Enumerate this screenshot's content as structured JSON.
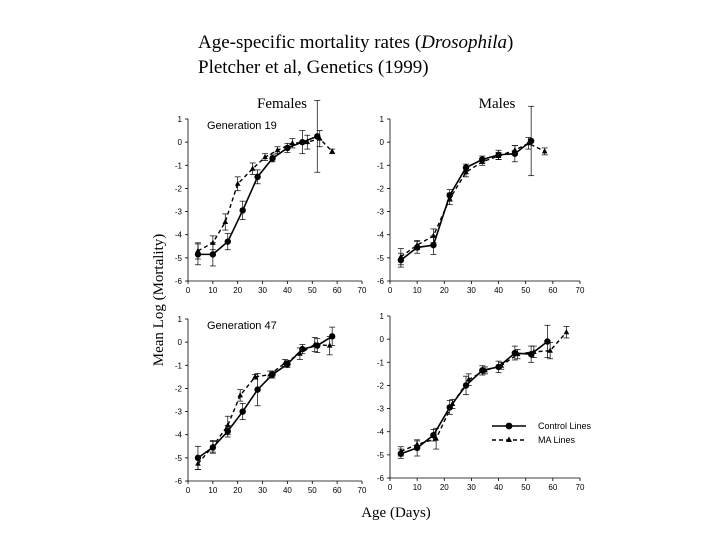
{
  "header": {
    "line1_prefix": "Age-specific mortality rates (",
    "line1_italic": "Drosophila",
    "line1_suffix": ")",
    "line2": "Pletcher et al, Genetics (1999)"
  },
  "chart_data": {
    "type": "line",
    "col_titles": [
      "Females",
      "Males"
    ],
    "xlabel": "Age (Days)",
    "ylabel": "Mean Log (Mortality)",
    "xticks": [
      "0",
      "10",
      "20",
      "30",
      "40",
      "50",
      "60",
      "70"
    ],
    "yticks": [
      "1",
      "0",
      "-1",
      "-2",
      "-3",
      "-4",
      "-5",
      "-6"
    ],
    "xlim": [
      0,
      70
    ],
    "ylim": [
      -6,
      1
    ],
    "legend": {
      "placement": "bottom-right panel, lower right",
      "entries": [
        {
          "name": "Control Lines",
          "style": "solid",
          "marker": "circle"
        },
        {
          "name": "MA Lines",
          "style": "dashed",
          "marker": "triangle"
        }
      ]
    },
    "panels": [
      {
        "gen_label": "Generation 19",
        "sex": "Females",
        "series": [
          {
            "name": "Control Lines",
            "x": [
              4,
              10,
              16,
              22,
              28,
              34,
              40,
              46,
              52
            ],
            "y": [
              -4.85,
              -4.85,
              -4.3,
              -2.95,
              -1.5,
              -0.7,
              -0.25,
              0.0,
              0.25
            ],
            "err": [
              0.45,
              0.5,
              0.35,
              0.4,
              0.3,
              0.15,
              0.2,
              0.5,
              1.55
            ]
          },
          {
            "name": "MA Lines",
            "x": [
              4,
              10,
              15,
              20,
              26,
              31,
              36,
              42,
              48,
              53,
              58
            ],
            "y": [
              -4.7,
              -4.35,
              -3.45,
              -1.8,
              -1.15,
              -0.65,
              -0.35,
              -0.05,
              0.0,
              0.15,
              -0.4
            ],
            "err": [
              0.35,
              0.3,
              0.35,
              0.3,
              0.25,
              0.15,
              0.15,
              0.2,
              0.3,
              0.35,
              0.1
            ]
          }
        ]
      },
      {
        "gen_label": "",
        "sex": "Males",
        "series": [
          {
            "name": "Control Lines",
            "x": [
              4,
              10,
              16,
              22,
              28,
              34,
              40,
              46,
              52
            ],
            "y": [
              -5.1,
              -4.55,
              -4.45,
              -2.3,
              -1.1,
              -0.75,
              -0.55,
              -0.5,
              0.05
            ],
            "err": [
              0.3,
              0.25,
              0.4,
              0.25,
              0.15,
              0.15,
              0.2,
              0.35,
              1.5
            ]
          },
          {
            "name": "MA Lines",
            "x": [
              4,
              10,
              16,
              22,
              28,
              34,
              40,
              46,
              51,
              57
            ],
            "y": [
              -4.95,
              -4.45,
              -4.05,
              -2.45,
              -1.3,
              -0.85,
              -0.6,
              -0.35,
              -0.05,
              -0.4
            ],
            "err": [
              0.35,
              0.2,
              0.3,
              0.25,
              0.2,
              0.15,
              0.15,
              0.2,
              0.25,
              0.15
            ]
          }
        ]
      },
      {
        "gen_label": "Generation 47",
        "sex": "Females",
        "series": [
          {
            "name": "Control Lines",
            "x": [
              4,
              10,
              16,
              22,
              28,
              34,
              40,
              46,
              52,
              58
            ],
            "y": [
              -5.0,
              -4.55,
              -3.85,
              -3.0,
              -2.05,
              -1.4,
              -0.95,
              -0.3,
              -0.15,
              0.25
            ],
            "err": [
              0.5,
              0.25,
              0.25,
              0.35,
              0.7,
              0.15,
              0.15,
              0.2,
              0.3,
              0.4
            ]
          },
          {
            "name": "MA Lines",
            "x": [
              4,
              10,
              16,
              21,
              27,
              33,
              39,
              45,
              51,
              57
            ],
            "y": [
              -5.25,
              -4.5,
              -3.6,
              -2.3,
              -1.5,
              -1.4,
              -0.9,
              -0.5,
              -0.1,
              -0.15
            ],
            "err": [
              0.25,
              0.25,
              0.4,
              0.25,
              0.1,
              0.15,
              0.15,
              0.25,
              0.3,
              0.4
            ]
          }
        ]
      },
      {
        "gen_label": "",
        "sex": "Males",
        "series": [
          {
            "name": "Control Lines",
            "x": [
              4,
              10,
              16,
              22,
              28,
              34,
              40,
              46,
              52,
              58
            ],
            "y": [
              -4.95,
              -4.7,
              -4.15,
              -2.95,
              -2.0,
              -1.35,
              -1.2,
              -0.6,
              -0.65,
              -0.1
            ],
            "err": [
              0.2,
              0.35,
              0.25,
              0.3,
              0.4,
              0.2,
              0.25,
              0.3,
              0.35,
              0.7
            ]
          },
          {
            "name": "MA Lines",
            "x": [
              4,
              10,
              17,
              23,
              29,
              35,
              41,
              47,
              53,
              59,
              65
            ],
            "y": [
              -4.85,
              -4.55,
              -4.3,
              -2.8,
              -1.75,
              -1.35,
              -1.15,
              -0.65,
              -0.55,
              -0.5,
              0.3
            ],
            "err": [
              0.2,
              0.15,
              0.45,
              0.2,
              0.25,
              0.15,
              0.15,
              0.2,
              0.25,
              0.35,
              0.25
            ]
          }
        ]
      }
    ]
  }
}
